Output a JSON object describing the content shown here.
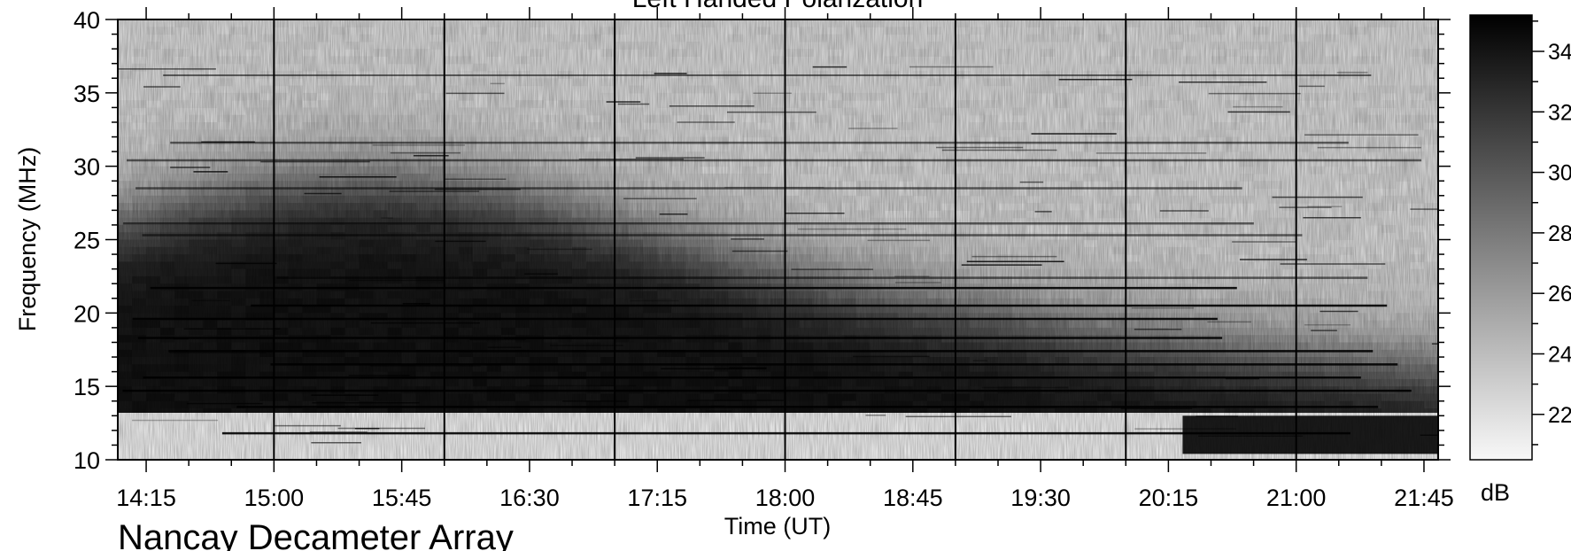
{
  "chart_data": {
    "type": "heatmap",
    "title": "Left Handed Polarization",
    "xlabel": "Time (UT)",
    "ylabel": "Frequency (MHz)",
    "colorbar_label": "dB",
    "footer": "Nancay Decameter Array",
    "colormap": "grayscale, white = low, black = high",
    "x_ticks": [
      "14:15",
      "15:00",
      "15:45",
      "16:30",
      "17:15",
      "18:00",
      "18:45",
      "19:30",
      "20:15",
      "21:00",
      "21:45"
    ],
    "x_range_minutes": [
      845,
      1310
    ],
    "y_ticks": [
      10,
      15,
      20,
      25,
      30,
      35,
      40
    ],
    "ylim": [
      10,
      40
    ],
    "colorbar_ticks": [
      22,
      24,
      26,
      28,
      30,
      32,
      34
    ],
    "colorbar_range": [
      20.5,
      35.2
    ],
    "vertical_marker_minutes": [
      900,
      960,
      1020,
      1080,
      1140,
      1200,
      1260
    ],
    "persistent_lines_mhz": [
      36.2,
      31.6,
      30.4,
      28.5,
      26.1,
      25.3,
      22.4,
      21.7,
      20.5,
      19.6,
      18.3,
      17.4,
      16.5,
      15.6,
      14.7,
      13.6,
      11.8
    ],
    "low_frequency_cutoff_mhz": 13.2,
    "late_band_start_minute": 1220
  }
}
